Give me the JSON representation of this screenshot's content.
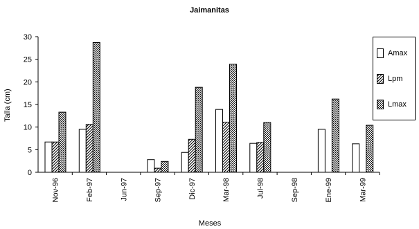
{
  "chart_data": {
    "type": "bar",
    "title": "Jaimanitas",
    "xlabel": "Meses",
    "ylabel": "Talla (cm)",
    "ylim": [
      0,
      30
    ],
    "yticks": [
      "0",
      "5",
      "10",
      "15",
      "20",
      "25",
      "30"
    ],
    "categories": [
      "Nov-96",
      "Feb-97",
      "Jun-97",
      "Sep-97",
      "Dic-97",
      "Mar-98",
      "Jul-98",
      "Sep-98",
      "Ene-99",
      "Mar-99"
    ],
    "series": [
      {
        "name": "Amax",
        "pattern": "white",
        "values": [
          6.7,
          9.5,
          null,
          2.8,
          4.4,
          13.9,
          6.4,
          null,
          9.5,
          6.3
        ]
      },
      {
        "name": "Lpm",
        "pattern": "hatch-up",
        "values": [
          6.7,
          10.6,
          null,
          0.9,
          7.3,
          11.1,
          6.6,
          null,
          null,
          null
        ]
      },
      {
        "name": "Lmax",
        "pattern": "hatch-down",
        "values": [
          13.3,
          28.7,
          null,
          2.4,
          18.8,
          23.9,
          11.0,
          null,
          16.2,
          10.4
        ]
      }
    ],
    "legend_position": "right",
    "grid": false
  }
}
